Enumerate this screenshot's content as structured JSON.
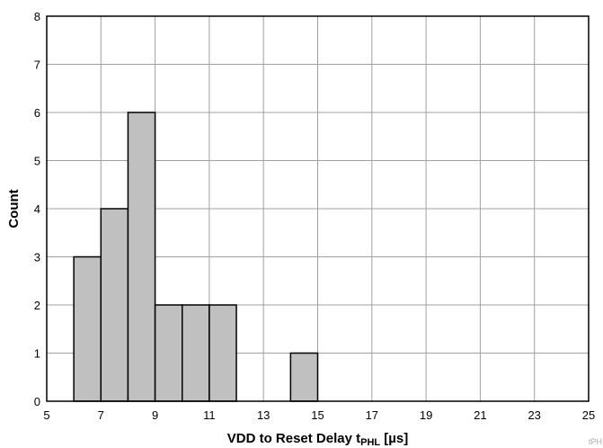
{
  "chart_data": {
    "type": "bar",
    "xlabel_main": "VDD to Reset Delay t",
    "xlabel_sub": "PHL",
    "xlabel_unit": " [µs]",
    "ylabel": "Count",
    "xlim": [
      5,
      25
    ],
    "ylim": [
      0,
      8
    ],
    "xticks": [
      5,
      7,
      9,
      11,
      13,
      15,
      17,
      19,
      21,
      23,
      25
    ],
    "yticks": [
      0,
      1,
      2,
      3,
      4,
      5,
      6,
      7,
      8
    ],
    "bins": [
      {
        "x0": 6,
        "x1": 7,
        "count": 3
      },
      {
        "x0": 7,
        "x1": 8,
        "count": 4
      },
      {
        "x0": 8,
        "x1": 9,
        "count": 6
      },
      {
        "x0": 9,
        "x1": 10,
        "count": 2
      },
      {
        "x0": 10,
        "x1": 11,
        "count": 2
      },
      {
        "x0": 11,
        "x1": 12,
        "count": 2
      },
      {
        "x0": 14,
        "x1": 15,
        "count": 1
      }
    ],
    "grid": true,
    "colors": {
      "bar_fill": "#c0c0c0",
      "bar_stroke": "#000000",
      "grid": "#a0a0a0"
    }
  },
  "watermark": "tPH"
}
